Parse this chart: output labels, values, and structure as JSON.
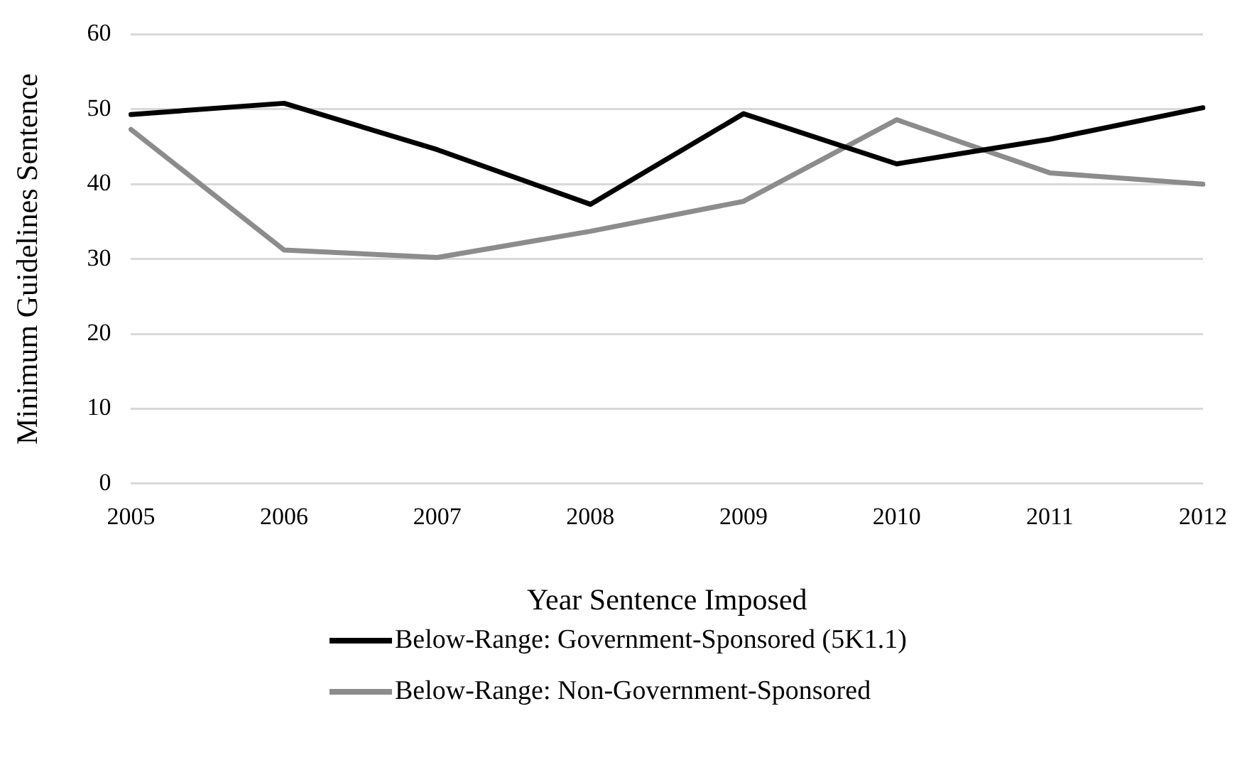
{
  "chart_data": {
    "type": "line",
    "xlabel": "Year Sentence Imposed",
    "ylabel": "Minimum Guidelines Sentence",
    "categories": [
      "2005",
      "2006",
      "2007",
      "2008",
      "2009",
      "2010",
      "2011",
      "2012"
    ],
    "series": [
      {
        "name": "Below-Range: Government-Sponsored (5K1.1)",
        "color": "#000000",
        "values": [
          49.3,
          50.8,
          44.6,
          37.3,
          49.4,
          42.7,
          46.0,
          50.2
        ]
      },
      {
        "name": "Below-Range: Non-Government-Sponsored",
        "color": "#8c8c8c",
        "values": [
          47.3,
          31.2,
          30.2,
          33.7,
          37.7,
          48.6,
          41.5,
          40.0
        ]
      }
    ],
    "ylim": [
      0,
      60
    ],
    "yticks": [
      0,
      10,
      20,
      30,
      40,
      50,
      60
    ],
    "grid": "y",
    "legend": "bottom",
    "marker": "none",
    "line_style": "solid"
  }
}
